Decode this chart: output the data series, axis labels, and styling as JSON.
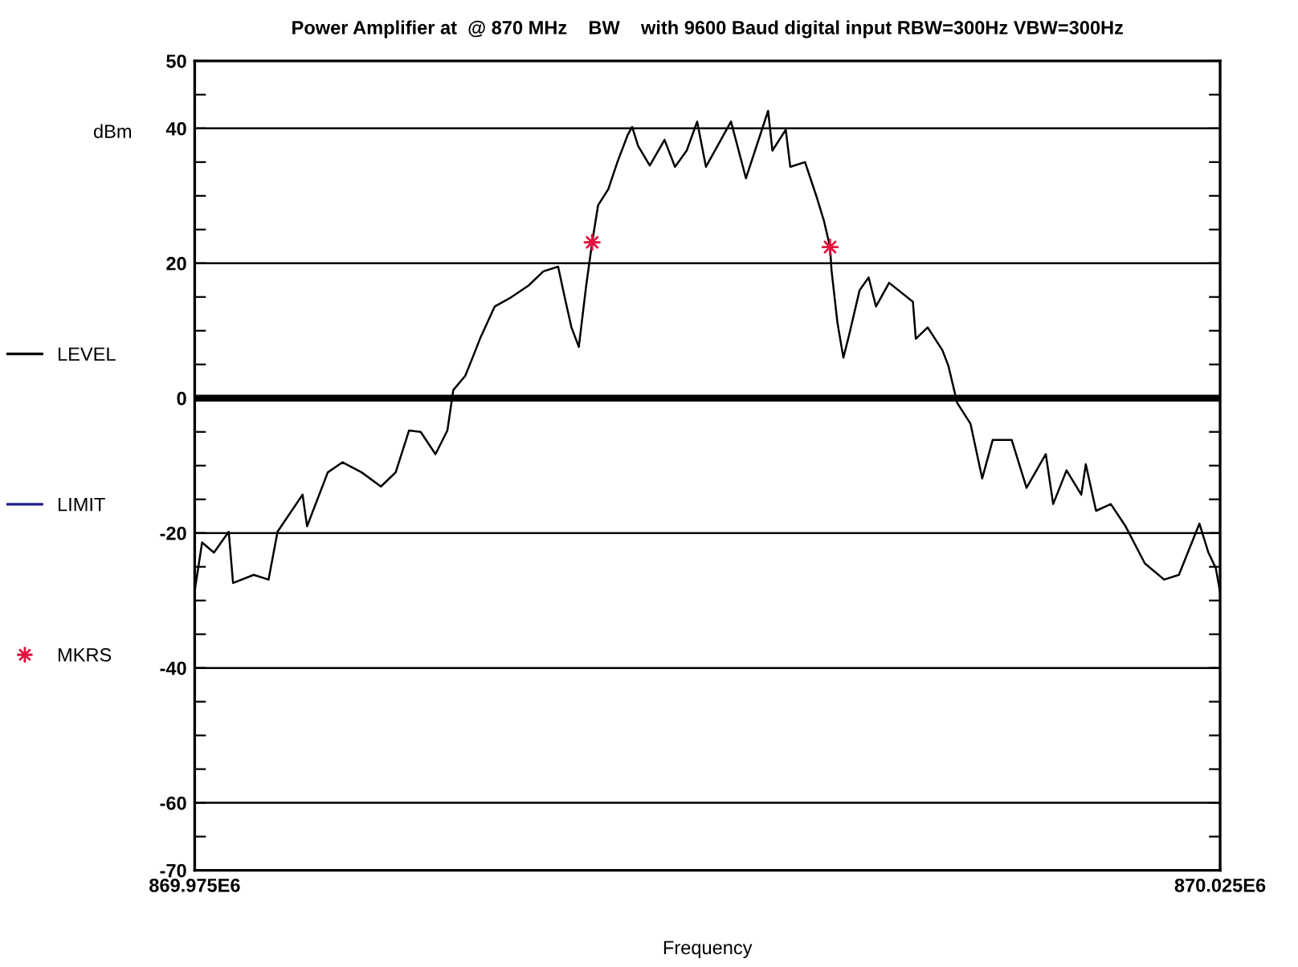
{
  "chart_data": {
    "type": "line",
    "title": "Power Amplifier at  @ 870 MHz    BW    with 9600 Baud digital input RBW=300Hz VBW=300Hz",
    "xlabel": "Frequency",
    "ylabel": "dBm",
    "xlim": [
      869975000,
      870025000
    ],
    "xticks": [
      {
        "value": 869975000,
        "label": "869.975E6"
      },
      {
        "value": 870025000,
        "label": "870.025E6"
      }
    ],
    "ylim": [
      -70,
      50
    ],
    "yticks": [
      50,
      {
        "value": 45,
        "label": null
      },
      40,
      {
        "value": 35,
        "label": null
      },
      {
        "value": 30,
        "label": null
      },
      {
        "value": 25,
        "label": null
      },
      20,
      {
        "value": 15,
        "label": null
      },
      {
        "value": 10,
        "label": null
      },
      {
        "value": 5,
        "label": null
      },
      0,
      {
        "value": -5,
        "label": null
      },
      {
        "value": -10,
        "label": null
      },
      {
        "value": -15,
        "label": null
      },
      -20,
      {
        "value": -25,
        "label": null
      },
      {
        "value": -30,
        "label": null
      },
      {
        "value": -35,
        "label": null
      },
      -40,
      {
        "value": -45,
        "label": null
      },
      {
        "value": -50,
        "label": null
      },
      {
        "value": -55,
        "label": null
      },
      -60,
      {
        "value": -65,
        "label": null
      },
      -70
    ],
    "grid": "y",
    "legend": "left",
    "ref_lines": [
      {
        "axis": "y",
        "value": 0,
        "label": "LEVEL",
        "color": "#000000"
      }
    ],
    "series": [
      {
        "color": "#000000",
        "x": [
          869975000,
          869975360,
          869975940,
          869976660,
          869976870,
          869977880,
          869978600,
          869979040,
          869980260,
          869980480,
          869981490,
          869982210,
          869983140,
          869984080,
          869984800,
          869985450,
          869986020,
          869986740,
          869987320,
          869987610,
          869988190,
          869988550,
          869988910,
          869989630,
          869990350,
          869991280,
          869992000,
          869992720,
          869993090,
          869993370,
          869993730,
          869994090,
          869994380,
          869994670,
          869995170,
          869995610,
          869996110,
          869996330,
          869996620,
          869997190,
          869997910,
          869998420,
          869998990,
          869999500,
          869999930,
          870001150,
          870001880,
          870002960,
          870003170,
          870003820,
          870004040,
          870004760,
          870005330,
          870005690,
          870005980,
          870006050,
          870006340,
          870006630,
          870006920,
          870007420,
          870007860,
          870008220,
          870008860,
          870010020,
          870010160,
          870010740,
          870011460,
          870011750,
          870012180,
          870012830,
          870013400,
          870013910,
          870014840,
          870015560,
          870016500,
          870016860,
          870017510,
          870018230,
          870018450,
          870018950,
          870019670,
          870020390,
          870021330,
          870022270,
          870022990,
          870023990,
          870024430,
          870024790,
          870025000
        ],
        "values": [
          -28.6,
          -21.4,
          -22.9,
          -19.8,
          -27.4,
          -26.2,
          -26.9,
          -19.8,
          -14.3,
          -19.0,
          -11.0,
          -9.5,
          -11.0,
          -13.1,
          -11.0,
          -4.8,
          -5.0,
          -8.3,
          -4.8,
          1.2,
          3.3,
          6.0,
          8.8,
          13.6,
          14.8,
          16.7,
          18.8,
          19.5,
          14.3,
          10.5,
          7.6,
          16.7,
          23.1,
          28.6,
          31.0,
          35.0,
          39.0,
          40.2,
          37.4,
          34.5,
          38.3,
          34.3,
          36.7,
          41.0,
          34.3,
          41.0,
          32.6,
          42.6,
          36.7,
          39.8,
          34.3,
          35.0,
          29.8,
          26.2,
          22.4,
          19.0,
          11.2,
          6.0,
          9.5,
          16.0,
          17.9,
          13.6,
          17.1,
          14.3,
          8.8,
          10.5,
          7.1,
          4.8,
          -0.7,
          -3.8,
          -11.9,
          -6.2,
          -6.2,
          -13.3,
          -8.3,
          -15.7,
          -10.7,
          -14.3,
          -9.8,
          -16.7,
          -15.7,
          -19.0,
          -24.5,
          -26.9,
          -26.2,
          -18.6,
          -22.9,
          -25.2,
          -28.8
        ]
      },
      {
        "type": "line",
        "name": "LIMIT",
        "color": "#1f1f8f"
      },
      {
        "type": "scatter",
        "name": "MKRS",
        "color": "#e0143c",
        "marker": "star",
        "x": [
          869994380,
          870005980
        ],
        "values": [
          23.1,
          22.4
        ]
      }
    ]
  }
}
